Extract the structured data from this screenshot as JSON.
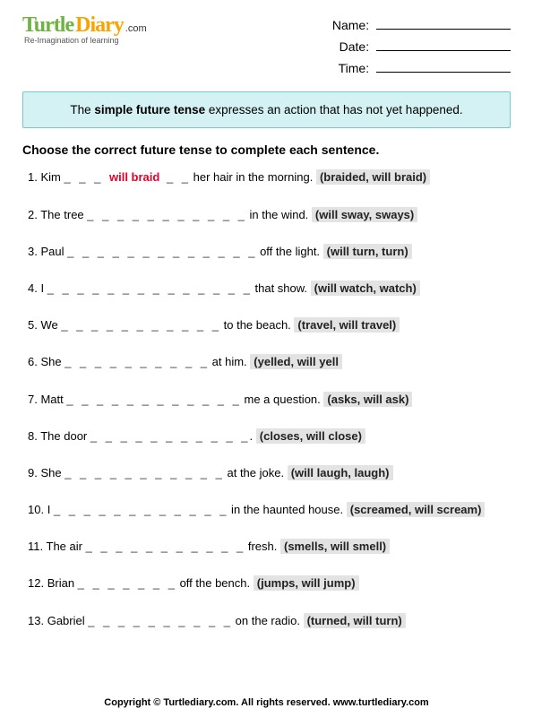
{
  "brand": {
    "word1": "Turtle",
    "word2": "Diary",
    "suffix": ".com",
    "tagline": "Re-Imagination of learning",
    "color_word1": "#6db33f",
    "color_word2": "#f7a400"
  },
  "meta": {
    "name_label": "Name:",
    "date_label": "Date:",
    "time_label": "Time:"
  },
  "info_box": {
    "prefix": "The ",
    "bold": "simple future tense",
    "suffix": " expresses an action that has not yet happened.",
    "bg": "#d4f2f3",
    "border": "#7cc6c9"
  },
  "instructions": "Choose the correct future tense to complete each sentence.",
  "answer_color": "#e3002b",
  "choice_bg": "#e3e3e3",
  "questions": [
    {
      "n": "1.",
      "pre": "Kim ",
      "blank": "_ _ _ ",
      "answer": "will braid",
      "blank2": " _ _",
      "post": " her hair in the morning.",
      "choices": "(braided, will braid)"
    },
    {
      "n": "2.",
      "pre": "The tree ",
      "blank": "_ _ _ _ _ _ _ _ _ _ _",
      "post": " in the wind.",
      "choices": "(will sway, sways)"
    },
    {
      "n": "3.",
      "pre": "Paul ",
      "blank": "_ _ _ _ _ _ _ _ _ _ _ _ _",
      "post": " off the light.",
      "choices": "(will turn, turn)"
    },
    {
      "n": "4.",
      "pre": "I ",
      "blank": "_ _ _ _ _ _ _ _ _ _ _ _ _ _",
      "post": " that show.",
      "choices": "(will watch, watch)"
    },
    {
      "n": "5.",
      "pre": "We ",
      "blank": "_ _ _ _ _ _ _ _ _ _ _",
      "post": " to the beach.",
      "choices": "(travel, will travel)"
    },
    {
      "n": "6.",
      "pre": "She ",
      "blank": "_ _ _ _ _ _ _ _ _ _",
      "post": " at him.",
      "choices": "(yelled, will yell"
    },
    {
      "n": "7.",
      "pre": "Matt ",
      "blank": "_ _ _ _ _ _ _ _ _ _ _ _",
      "post": " me a question.",
      "choices": "(asks, will ask)"
    },
    {
      "n": "8.",
      "pre": "The door ",
      "blank": "_ _ _ _ _ _ _ _ _ _ _",
      "post": ".",
      "choices": "(closes, will close)"
    },
    {
      "n": "9.",
      "pre": "She ",
      "blank": "_ _ _ _ _ _ _ _ _ _ _",
      "post": " at the joke.",
      "choices": "(will laugh, laugh)"
    },
    {
      "n": "10.",
      "pre": "I ",
      "blank": "_ _ _ _ _ _ _ _ _ _ _ _",
      "post": " in the haunted house.",
      "choices": "(screamed, will scream)"
    },
    {
      "n": "11.",
      "pre": "The air ",
      "blank": "_ _ _ _ _ _ _ _ _ _ _",
      "post": " fresh.",
      "choices": "(smells, will smell)"
    },
    {
      "n": "12.",
      "pre": "Brian ",
      "blank": "_ _ _ _ _ _ _",
      "post": " off the bench.",
      "choices": "(jumps, will jump)"
    },
    {
      "n": "13.",
      "pre": "Gabriel ",
      "blank": "_ _ _ _ _ _ _ _ _ _",
      "post": " on the radio.",
      "choices": "(turned, will turn)"
    }
  ],
  "footer": "Copyright © Turtlediary.com. All rights reserved. www.turtlediary.com"
}
